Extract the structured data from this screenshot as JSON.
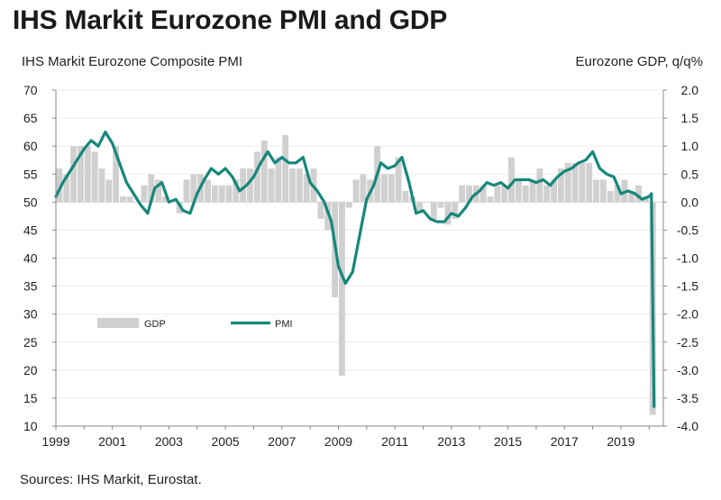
{
  "title": "IHS Markit Eurozone PMI and GDP",
  "source": "Sources: IHS Markit, Eurostat.",
  "colors": {
    "pmi": "#15877a",
    "gdp": "#d0d0d0",
    "axis": "#8a8a8a"
  },
  "chart_data": {
    "type": "line",
    "title": "IHS Markit Eurozone PMI and GDP",
    "left_axis": {
      "label": "IHS Markit Eurozone Composite PMI",
      "ylim": [
        10,
        70
      ],
      "ticks": [
        "70",
        "65",
        "60",
        "55",
        "50",
        "45",
        "40",
        "35",
        "30",
        "25",
        "20",
        "15",
        "10"
      ]
    },
    "right_axis": {
      "label": "Eurozone GDP, q/q%",
      "ylim": [
        -4.0,
        2.0
      ],
      "ticks": [
        "2.0",
        "1.5",
        "1.0",
        "0.5",
        "0.0",
        "-0.5",
        "-1.0",
        "-1.5",
        "-2.0",
        "-2.5",
        "-3.0",
        "-3.5",
        "-4.0"
      ]
    },
    "x_axis": {
      "xlim": [
        1999.0,
        2020.5
      ],
      "ticks": [
        "1999",
        "2001",
        "2003",
        "2005",
        "2007",
        "2009",
        "2011",
        "2013",
        "2015",
        "2017",
        "2019"
      ]
    },
    "legend": {
      "placement": "middle-left",
      "entries": [
        "GDP",
        "PMI"
      ]
    },
    "series": [
      {
        "name": "GDP",
        "type": "bar",
        "axis": "right",
        "x": [
          1999.0,
          1999.25,
          1999.5,
          1999.75,
          2000.0,
          2000.25,
          2000.5,
          2000.75,
          2001.0,
          2001.25,
          2001.5,
          2001.75,
          2002.0,
          2002.25,
          2002.5,
          2002.75,
          2003.0,
          2003.25,
          2003.5,
          2003.75,
          2004.0,
          2004.25,
          2004.5,
          2004.75,
          2005.0,
          2005.25,
          2005.5,
          2005.75,
          2006.0,
          2006.25,
          2006.5,
          2006.75,
          2007.0,
          2007.25,
          2007.5,
          2007.75,
          2008.0,
          2008.25,
          2008.5,
          2008.75,
          2009.0,
          2009.25,
          2009.5,
          2009.75,
          2010.0,
          2010.25,
          2010.5,
          2010.75,
          2011.0,
          2011.25,
          2011.5,
          2011.75,
          2012.0,
          2012.25,
          2012.5,
          2012.75,
          2013.0,
          2013.25,
          2013.5,
          2013.75,
          2014.0,
          2014.25,
          2014.5,
          2014.75,
          2015.0,
          2015.25,
          2015.5,
          2015.75,
          2016.0,
          2016.25,
          2016.5,
          2016.75,
          2017.0,
          2017.25,
          2017.5,
          2017.75,
          2018.0,
          2018.25,
          2018.5,
          2018.75,
          2019.0,
          2019.25,
          2019.5,
          2019.75,
          2020.0
        ],
        "values": [
          0.6,
          0.5,
          1.0,
          1.0,
          1.0,
          0.9,
          0.6,
          0.4,
          1.0,
          0.1,
          0.1,
          0.0,
          0.3,
          0.5,
          0.4,
          0.1,
          0.0,
          -0.2,
          0.4,
          0.5,
          0.5,
          0.4,
          0.3,
          0.3,
          0.3,
          0.4,
          0.6,
          0.6,
          0.9,
          1.1,
          0.6,
          0.8,
          1.2,
          0.6,
          0.6,
          0.5,
          0.6,
          -0.3,
          -0.5,
          -1.7,
          -3.1,
          -0.1,
          0.4,
          0.5,
          0.4,
          1.0,
          0.5,
          0.5,
          0.8,
          0.2,
          0.1,
          -0.2,
          0.0,
          -0.3,
          -0.1,
          -0.4,
          -0.3,
          0.3,
          0.3,
          0.3,
          0.3,
          0.1,
          0.3,
          0.3,
          0.8,
          0.4,
          0.3,
          0.4,
          0.6,
          0.3,
          0.4,
          0.6,
          0.7,
          0.7,
          0.7,
          0.7,
          0.4,
          0.4,
          0.2,
          0.3,
          0.4,
          0.2,
          0.3,
          0.1,
          -3.8
        ]
      },
      {
        "name": "PMI",
        "type": "line",
        "axis": "left",
        "x": [
          1999.0,
          1999.25,
          1999.5,
          1999.75,
          2000.0,
          2000.25,
          2000.5,
          2000.75,
          2001.0,
          2001.25,
          2001.5,
          2001.75,
          2002.0,
          2002.25,
          2002.5,
          2002.75,
          2003.0,
          2003.25,
          2003.5,
          2003.75,
          2004.0,
          2004.25,
          2004.5,
          2004.75,
          2005.0,
          2005.25,
          2005.5,
          2005.75,
          2006.0,
          2006.25,
          2006.5,
          2006.75,
          2007.0,
          2007.25,
          2007.5,
          2007.75,
          2008.0,
          2008.25,
          2008.5,
          2008.75,
          2009.0,
          2009.25,
          2009.5,
          2009.75,
          2010.0,
          2010.25,
          2010.5,
          2010.75,
          2011.0,
          2011.25,
          2011.5,
          2011.75,
          2012.0,
          2012.25,
          2012.5,
          2012.75,
          2013.0,
          2013.25,
          2013.5,
          2013.75,
          2014.0,
          2014.25,
          2014.5,
          2014.75,
          2015.0,
          2015.25,
          2015.5,
          2015.75,
          2016.0,
          2016.25,
          2016.5,
          2016.75,
          2017.0,
          2017.25,
          2017.5,
          2017.75,
          2018.0,
          2018.25,
          2018.5,
          2018.75,
          2019.0,
          2019.25,
          2019.5,
          2019.75,
          2020.0,
          2020.08,
          2020.17
        ],
        "values": [
          51.0,
          53.5,
          55.5,
          57.5,
          59.5,
          61.0,
          60.0,
          62.5,
          60.5,
          57.0,
          53.5,
          51.5,
          49.5,
          48.0,
          52.5,
          53.5,
          50.0,
          50.5,
          48.5,
          48.0,
          51.5,
          54.0,
          56.0,
          55.0,
          56.0,
          54.5,
          52.0,
          53.0,
          54.5,
          57.0,
          59.0,
          57.0,
          58.0,
          57.0,
          57.0,
          58.0,
          53.5,
          52.0,
          50.0,
          46.5,
          38.5,
          35.5,
          37.5,
          44.0,
          50.5,
          53.0,
          57.0,
          56.0,
          56.5,
          58.0,
          53.5,
          48.0,
          48.5,
          47.0,
          46.5,
          46.5,
          48.0,
          47.5,
          49.0,
          51.0,
          52.0,
          53.5,
          53.0,
          53.5,
          52.5,
          54.0,
          54.0,
          54.0,
          53.5,
          54.0,
          53.0,
          54.5,
          55.5,
          56.0,
          57.0,
          57.5,
          59.0,
          56.0,
          55.0,
          54.5,
          51.5,
          52.0,
          51.5,
          50.5,
          51.0,
          51.5,
          13.5
        ]
      }
    ]
  }
}
